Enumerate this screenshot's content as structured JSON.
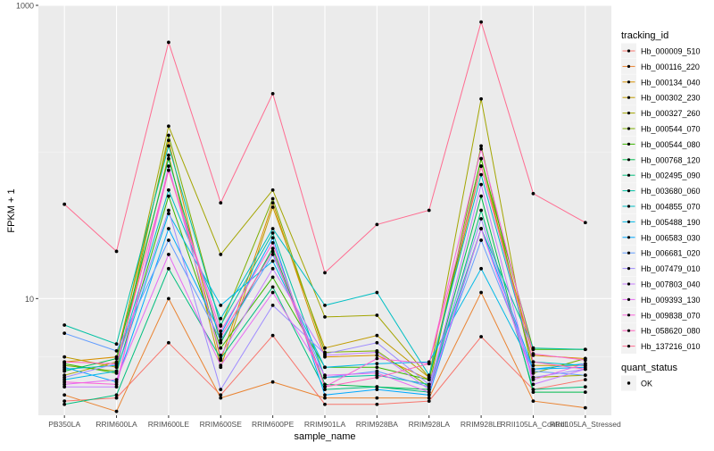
{
  "chart_data": {
    "type": "line",
    "x": [
      "PB350LA",
      "RRIM600LA",
      "RRIM600LE",
      "RRIM600SE",
      "RRIM600PE",
      "RRIM901LA",
      "RRIM928BA",
      "RRIM928LA",
      "RRIM928LE",
      "RRII105LA_Control",
      "RRII105LA_Stressed"
    ],
    "xlabel": "sample_name",
    "ylabel": "FPKM + 1",
    "y_scale": "log10",
    "ylim": [
      1.6,
      1000
    ],
    "y_ticks": [
      10,
      1000
    ],
    "y_tick_labels": [
      "10",
      "1000"
    ],
    "grid": true,
    "legend_position": "right",
    "legend_title": "tracking_id",
    "point_legend": {
      "title": "quant_status",
      "entries": [
        "OK"
      ]
    },
    "series": [
      {
        "name": "Hb_000009_510",
        "color": "#F8766D",
        "values": [
          2.0,
          2.1,
          5.0,
          2.2,
          5.6,
          1.9,
          1.9,
          2.0,
          5.5,
          2.4,
          2.8
        ]
      },
      {
        "name": "Hb_000116_220",
        "color": "#EA8331",
        "values": [
          2.2,
          1.7,
          10,
          2.1,
          2.7,
          2.1,
          2.1,
          2.1,
          11,
          2.0,
          1.8
        ]
      },
      {
        "name": "Hb_000134_040",
        "color": "#D89000",
        "values": [
          3.7,
          4.0,
          120,
          3.8,
          45,
          4.0,
          4.1,
          2.8,
          80,
          4.1,
          3.9
        ]
      },
      {
        "name": "Hb_000302_230",
        "color": "#C09B00",
        "values": [
          4.0,
          3.4,
          95,
          3.4,
          42,
          4.6,
          5.6,
          2.9,
          90,
          3.5,
          3.5
        ]
      },
      {
        "name": "Hb_000327_260",
        "color": "#A3A500",
        "values": [
          3.0,
          3.7,
          150,
          20,
          55,
          7.5,
          7.7,
          2.9,
          230,
          2.9,
          3.0
        ]
      },
      {
        "name": "Hb_000544_070",
        "color": "#7CAE00",
        "values": [
          3.5,
          3.2,
          130,
          6.5,
          48,
          4.3,
          4.4,
          2.5,
          110,
          3.1,
          3.9
        ]
      },
      {
        "name": "Hb_000544_080",
        "color": "#39B600",
        "values": [
          3.6,
          3.1,
          50,
          4.6,
          14,
          3.4,
          3.4,
          2.8,
          90,
          4.5,
          4.5
        ]
      },
      {
        "name": "Hb_000768_120",
        "color": "#00BB4E",
        "values": [
          3.2,
          3.9,
          90,
          5.0,
          22,
          2.6,
          2.5,
          2.4,
          50,
          2.3,
          2.3
        ]
      },
      {
        "name": "Hb_002495_090",
        "color": "#00BF7D",
        "values": [
          1.9,
          2.2,
          16,
          3.9,
          12,
          2.4,
          2.5,
          2.3,
          40,
          2.4,
          2.5
        ]
      },
      {
        "name": "Hb_003680_060",
        "color": "#00C1A3",
        "values": [
          6.6,
          4.9,
          110,
          6.6,
          28,
          2.9,
          3.0,
          2.6,
          30,
          4.6,
          4.5
        ]
      },
      {
        "name": "Hb_004855_070",
        "color": "#00BFC4",
        "values": [
          3.3,
          3.5,
          55,
          7.3,
          30,
          9.0,
          11,
          3.0,
          70,
          3.7,
          3.5
        ]
      },
      {
        "name": "Hb_005488_190",
        "color": "#00B8E7",
        "values": [
          2.8,
          3.2,
          38,
          9.0,
          18,
          3.4,
          3.6,
          3.7,
          16,
          3.3,
          3.6
        ]
      },
      {
        "name": "Hb_006583_030",
        "color": "#00A9FF",
        "values": [
          3.4,
          2.7,
          30,
          5.7,
          26,
          2.2,
          2.4,
          2.2,
          30,
          3.3,
          3.4
        ]
      },
      {
        "name": "Hb_006681_020",
        "color": "#619CFF",
        "values": [
          5.8,
          4.4,
          25,
          5.2,
          20,
          2.9,
          3.2,
          2.5,
          25,
          3.2,
          3.0
        ]
      },
      {
        "name": "Hb_007479_010",
        "color": "#9F8CFF",
        "values": [
          2.9,
          3.6,
          40,
          2.4,
          9.0,
          4.2,
          5.0,
          2.6,
          35,
          2.9,
          3.3
        ]
      },
      {
        "name": "Hb_007803_040",
        "color": "#C77CFF",
        "values": [
          2.5,
          2.5,
          80,
          4.1,
          16,
          4.1,
          4.3,
          2.4,
          60,
          2.6,
          3.3
        ]
      },
      {
        "name": "Hb_009393_130",
        "color": "#E76BF3",
        "values": [
          2.6,
          2.8,
          20,
          3.5,
          11,
          3.0,
          3.1,
          2.3,
          30,
          2.8,
          3.6
        ]
      },
      {
        "name": "Hb_009838_070",
        "color": "#FA62DB",
        "values": [
          2.7,
          2.6,
          75,
          6.0,
          24,
          2.5,
          3.9,
          3.6,
          105,
          4.2,
          3.8
        ]
      },
      {
        "name": "Hb_058620_080",
        "color": "#FF62BC",
        "values": [
          3.7,
          3.6,
          75,
          5.5,
          21,
          2.5,
          2.9,
          3.6,
          80,
          3.7,
          3.3
        ]
      },
      {
        "name": "Hb_137216_010",
        "color": "#FF6C91",
        "values": [
          44,
          21,
          560,
          45,
          250,
          15,
          32,
          40,
          770,
          52,
          33
        ]
      }
    ]
  }
}
